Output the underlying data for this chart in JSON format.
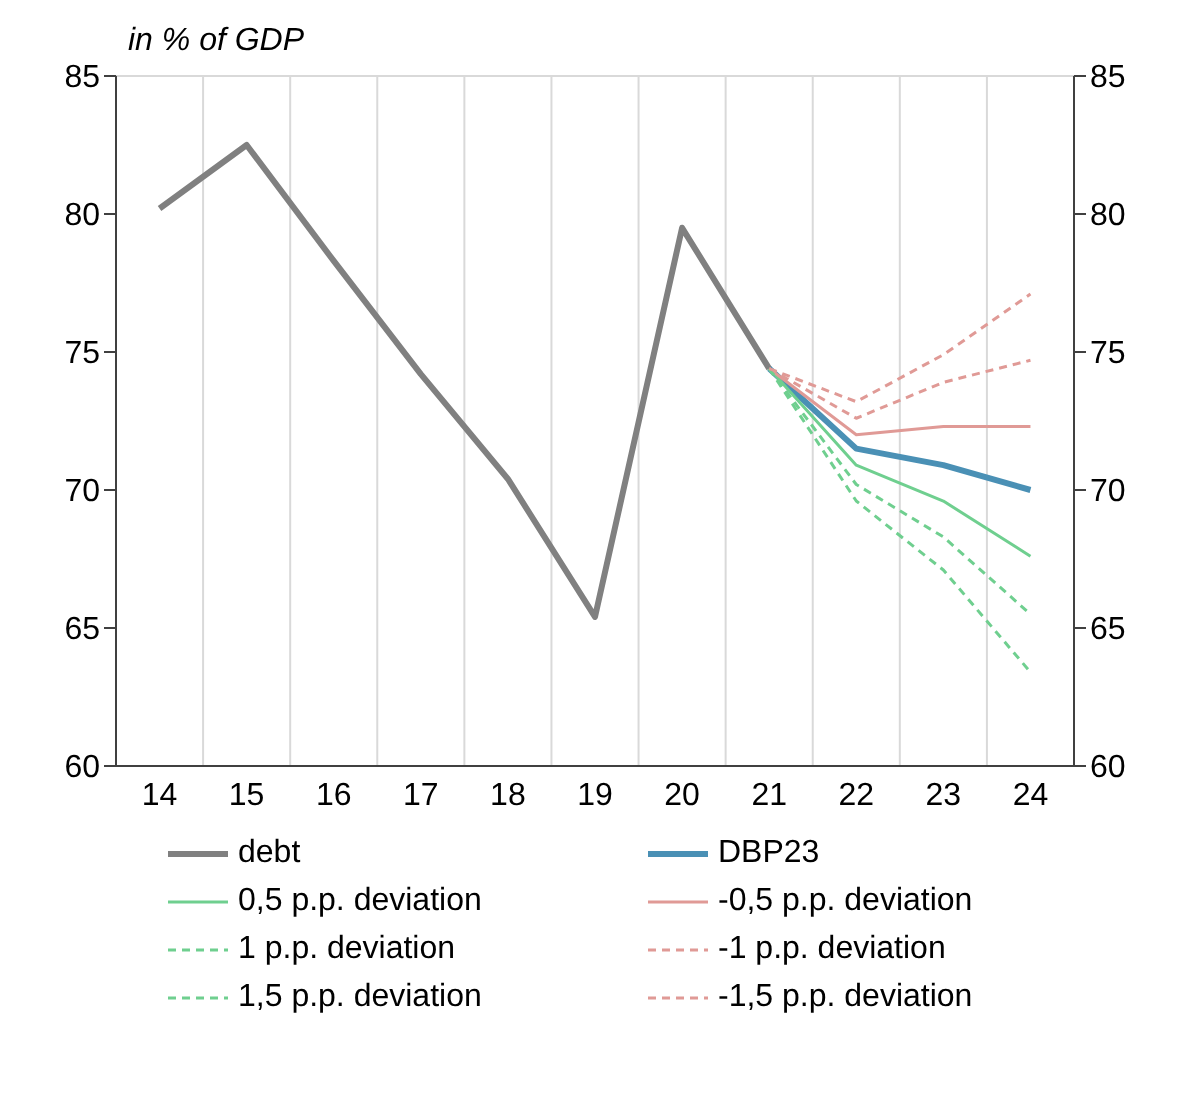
{
  "chart_data": {
    "type": "line",
    "ylabel": "in % of GDP",
    "categories": [
      "14",
      "15",
      "16",
      "17",
      "18",
      "19",
      "20",
      "21",
      "22",
      "23",
      "24"
    ],
    "ylim": [
      60,
      85
    ],
    "yticks": [
      60,
      65,
      70,
      75,
      80,
      85
    ],
    "y2lim": [
      60,
      85
    ],
    "y2ticks": [
      60,
      65,
      70,
      75,
      80,
      85
    ],
    "grid": true,
    "legend": "bottom",
    "marker": "none",
    "series": [
      {
        "name": "debt",
        "color": "#808080",
        "line_style": "solid",
        "values": [
          80.2,
          82.5,
          78.3,
          74.2,
          70.4,
          65.4,
          79.5,
          74.4,
          null,
          null,
          null
        ]
      },
      {
        "name": "DBP23",
        "color": "#4a90b5",
        "line_style": "solid",
        "values": [
          null,
          null,
          null,
          null,
          null,
          null,
          null,
          74.4,
          71.5,
          70.9,
          70.0
        ]
      },
      {
        "name": "0,5 p.p. deviation",
        "color": "#6fcf8f",
        "line_style": "solid",
        "values": [
          null,
          null,
          null,
          null,
          null,
          null,
          null,
          74.4,
          70.9,
          69.6,
          67.6
        ]
      },
      {
        "name": "-0,5 p.p. deviation",
        "color": "#e09a96",
        "line_style": "solid",
        "values": [
          null,
          null,
          null,
          null,
          null,
          null,
          null,
          74.4,
          72.0,
          72.3,
          72.3
        ]
      },
      {
        "name": "1 p.p. deviation",
        "color": "#6fcf8f",
        "line_style": "dashed",
        "values": [
          null,
          null,
          null,
          null,
          null,
          null,
          null,
          74.4,
          70.2,
          68.3,
          65.5
        ]
      },
      {
        "name": "-1 p.p. deviation",
        "color": "#e09a96",
        "line_style": "dashed",
        "values": [
          null,
          null,
          null,
          null,
          null,
          null,
          null,
          74.4,
          72.6,
          73.9,
          74.7
        ]
      },
      {
        "name": "1,5 p.p. deviation",
        "color": "#6fcf8f",
        "line_style": "dashed",
        "values": [
          null,
          null,
          null,
          null,
          null,
          null,
          null,
          74.4,
          69.6,
          67.1,
          63.4
        ]
      },
      {
        "name": "-1,5 p.p. deviation",
        "color": "#e09a96",
        "line_style": "dashed",
        "values": [
          null,
          null,
          null,
          null,
          null,
          null,
          null,
          74.4,
          73.2,
          74.9,
          77.1
        ]
      }
    ]
  }
}
